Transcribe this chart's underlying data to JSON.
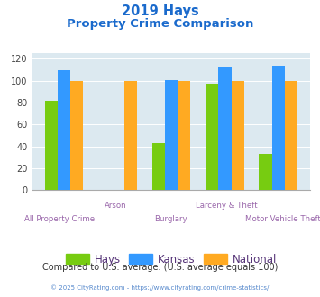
{
  "title_line1": "2019 Hays",
  "title_line2": "Property Crime Comparison",
  "categories": [
    "All Property Crime",
    "Arson",
    "Burglary",
    "Larceny & Theft",
    "Motor Vehicle Theft"
  ],
  "hays": [
    82,
    0,
    43,
    97,
    33
  ],
  "kansas": [
    110,
    0,
    101,
    112,
    114
  ],
  "national": [
    100,
    100,
    100,
    100,
    100
  ],
  "colors": {
    "hays": "#77cc11",
    "kansas": "#3399ff",
    "national": "#ffaa22"
  },
  "ylim": [
    0,
    125
  ],
  "yticks": [
    0,
    20,
    40,
    60,
    80,
    100,
    120
  ],
  "bg_color": "#dce9f0",
  "title_color": "#1a6acc",
  "cat_label_color": "#9966aa",
  "footer_text": "Compared to U.S. average. (U.S. average equals 100)",
  "footer_color": "#333333",
  "copyright_text": "© 2025 CityRating.com - https://www.cityrating.com/crime-statistics/",
  "copyright_color": "#5588cc",
  "legend_labels": [
    "Hays",
    "Kansas",
    "National"
  ],
  "legend_text_color": "#553377"
}
